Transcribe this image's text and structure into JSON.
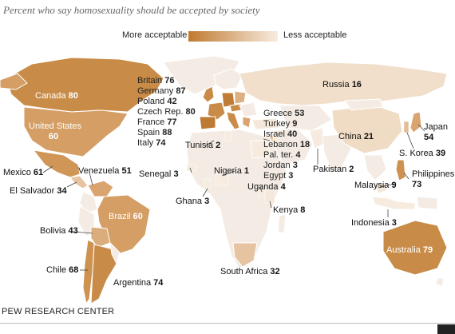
{
  "title": "Percent who say homosexuality should be accepted by society",
  "legend": {
    "more": "More acceptable",
    "less": "Less acceptable",
    "colors": {
      "high": "#c07a30",
      "low": "#f7ece0"
    }
  },
  "source": "PEW RESEARCH CENTER",
  "countries": [
    {
      "name": "Canada",
      "value": 80
    },
    {
      "name": "United States",
      "value": 60
    },
    {
      "name": "Mexico",
      "value": 61
    },
    {
      "name": "El Salvador",
      "value": 34
    },
    {
      "name": "Venezuela",
      "value": 51
    },
    {
      "name": "Brazil",
      "value": 60
    },
    {
      "name": "Bolivia",
      "value": 43
    },
    {
      "name": "Chile",
      "value": 68
    },
    {
      "name": "Argentina",
      "value": 74
    },
    {
      "name": "Britain",
      "value": 76
    },
    {
      "name": "Germany",
      "value": 87
    },
    {
      "name": "Poland",
      "value": 42
    },
    {
      "name": "Czech Rep.",
      "value": 80
    },
    {
      "name": "France",
      "value": 77
    },
    {
      "name": "Spain",
      "value": 88
    },
    {
      "name": "Italy",
      "value": 74
    },
    {
      "name": "Russia",
      "value": 16
    },
    {
      "name": "Greece",
      "value": 53
    },
    {
      "name": "Turkey",
      "value": 9
    },
    {
      "name": "Israel",
      "value": 40
    },
    {
      "name": "Lebanon",
      "value": 18
    },
    {
      "name": "Pal. ter.",
      "value": 4
    },
    {
      "name": "Jordan",
      "value": 3
    },
    {
      "name": "Egypt",
      "value": 3
    },
    {
      "name": "Tunisia",
      "value": 2
    },
    {
      "name": "Senegal",
      "value": 3
    },
    {
      "name": "Nigeria",
      "value": 1
    },
    {
      "name": "Ghana",
      "value": 3
    },
    {
      "name": "Uganda",
      "value": 4
    },
    {
      "name": "Kenya",
      "value": 8
    },
    {
      "name": "South Africa",
      "value": 32
    },
    {
      "name": "Pakistan",
      "value": 2
    },
    {
      "name": "China",
      "value": 21
    },
    {
      "name": "Japan",
      "value": 54
    },
    {
      "name": "S. Korea",
      "value": 39
    },
    {
      "name": "Philippines",
      "value": 73
    },
    {
      "name": "Malaysia",
      "value": 9
    },
    {
      "name": "Indonesia",
      "value": 3
    },
    {
      "name": "Australia",
      "value": 79
    }
  ]
}
